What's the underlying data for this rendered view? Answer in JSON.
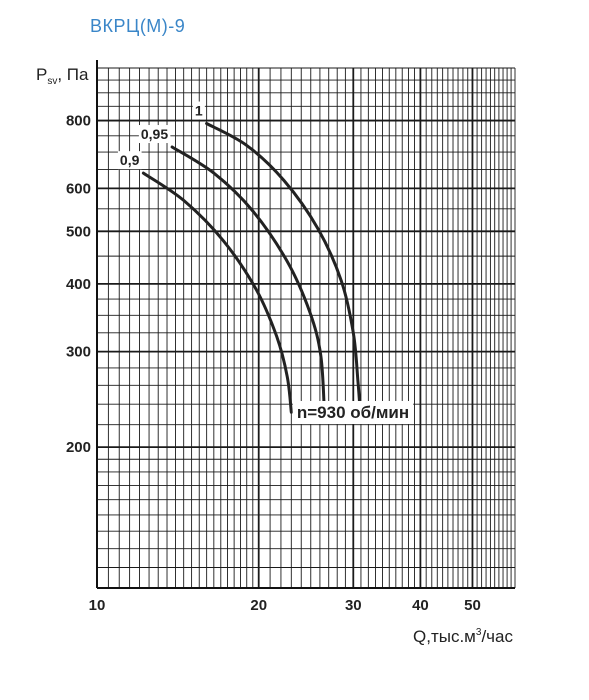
{
  "page": {
    "title": "ВКРЦ(М)-9"
  },
  "chart_data": {
    "type": "line",
    "title": "ВКРЦ(М)-9",
    "xscale": "log",
    "yscale": "log",
    "xlim": [
      10,
      60
    ],
    "ylim": [
      110,
      1000
    ],
    "grid": true,
    "ylabel": {
      "main": "P",
      "sub": "sv",
      "tail": ", Па"
    },
    "xlabel": {
      "main": "Q,тыс.м",
      "sup": "3",
      "tail": "/час"
    },
    "x_ticks": [
      "10",
      "20",
      "30",
      "40",
      "50"
    ],
    "y_ticks": [
      "200",
      "300",
      "400",
      "500",
      "600",
      "800"
    ],
    "annotation": "n=930 об/мин",
    "series": [
      {
        "name": "0,9",
        "color": "#222222",
        "points": [
          [
            12.2,
            640
          ],
          [
            14.5,
            570
          ],
          [
            17.2,
            480
          ],
          [
            19.8,
            390
          ],
          [
            21.6,
            320
          ],
          [
            22.6,
            270
          ],
          [
            23.0,
            232
          ]
        ]
      },
      {
        "name": "0,95",
        "color": "#222222",
        "points": [
          [
            13.8,
            715
          ],
          [
            16.5,
            640
          ],
          [
            19.5,
            545
          ],
          [
            22.6,
            440
          ],
          [
            24.9,
            355
          ],
          [
            26.1,
            295
          ],
          [
            26.5,
            232
          ]
        ]
      },
      {
        "name": "1",
        "color": "#222222",
        "points": [
          [
            16.0,
            790
          ],
          [
            19.0,
            720
          ],
          [
            22.3,
            620
          ],
          [
            25.8,
            505
          ],
          [
            28.5,
            405
          ],
          [
            30.0,
            325
          ],
          [
            30.6,
            265
          ],
          [
            30.9,
            232
          ]
        ]
      }
    ]
  }
}
